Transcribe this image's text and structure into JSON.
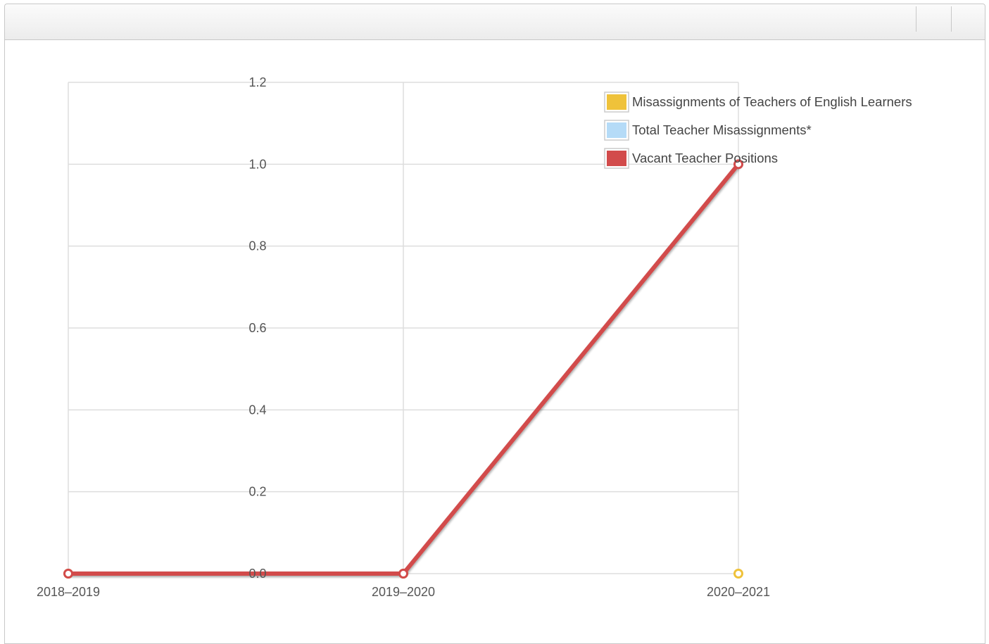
{
  "colors": {
    "misassignments_el": "#efc23a",
    "total_misassignments": "#b5dbf7",
    "vacant_positions": "#d24b4b"
  },
  "chart_data": {
    "type": "line",
    "title": "",
    "xlabel": "",
    "ylabel": "",
    "categories": [
      "2018–2019",
      "2019–2020",
      "2020–2021"
    ],
    "ylim": [
      0,
      1.2
    ],
    "y_ticks": [
      "0.0",
      "0.2",
      "0.4",
      "0.6",
      "0.8",
      "1.0",
      "1.2"
    ],
    "y_tick_values": [
      0,
      0.2,
      0.4,
      0.6,
      0.8,
      1.0,
      1.2
    ],
    "grid": true,
    "legend_position": "top-right",
    "series": [
      {
        "name": "Misassignments of Teachers of English Learners",
        "color": "#efc23a",
        "values": [
          0,
          0,
          0
        ]
      },
      {
        "name": "Total Teacher Misassignments*",
        "color": "#b5dbf7",
        "values": [
          null,
          null,
          null
        ]
      },
      {
        "name": "Vacant Teacher Positions",
        "color": "#d24b4b",
        "values": [
          0,
          0,
          1
        ]
      }
    ]
  }
}
